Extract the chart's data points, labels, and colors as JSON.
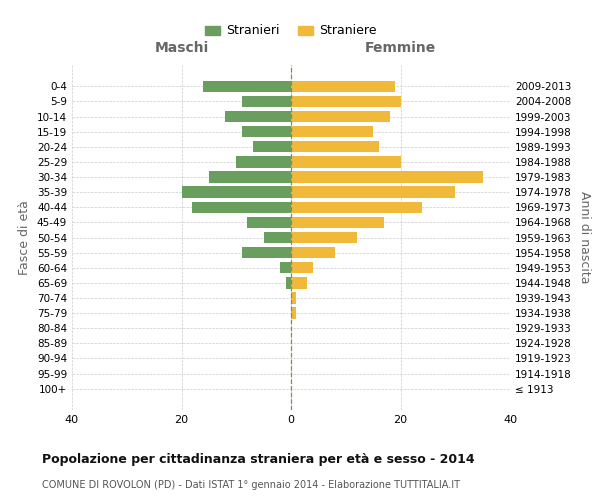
{
  "age_groups": [
    "100+",
    "95-99",
    "90-94",
    "85-89",
    "80-84",
    "75-79",
    "70-74",
    "65-69",
    "60-64",
    "55-59",
    "50-54",
    "45-49",
    "40-44",
    "35-39",
    "30-34",
    "25-29",
    "20-24",
    "15-19",
    "10-14",
    "5-9",
    "0-4"
  ],
  "birth_years": [
    "≤ 1913",
    "1914-1918",
    "1919-1923",
    "1924-1928",
    "1929-1933",
    "1934-1938",
    "1939-1943",
    "1944-1948",
    "1949-1953",
    "1954-1958",
    "1959-1963",
    "1964-1968",
    "1969-1973",
    "1974-1978",
    "1979-1983",
    "1984-1988",
    "1989-1993",
    "1994-1998",
    "1999-2003",
    "2004-2008",
    "2009-2013"
  ],
  "maschi": [
    0,
    0,
    0,
    0,
    0,
    0,
    0,
    1,
    2,
    9,
    5,
    8,
    18,
    20,
    15,
    10,
    7,
    9,
    12,
    9,
    16
  ],
  "femmine": [
    0,
    0,
    0,
    0,
    0,
    1,
    1,
    3,
    4,
    8,
    12,
    17,
    24,
    30,
    35,
    20,
    16,
    15,
    18,
    20,
    19
  ],
  "color_maschi": "#6a9e5e",
  "color_femmine": "#f0b93a",
  "title": "Popolazione per cittadinanza straniera per età e sesso - 2014",
  "subtitle": "COMUNE DI ROVOLON (PD) - Dati ISTAT 1° gennaio 2014 - Elaborazione TUTTITALIA.IT",
  "xlabel_left": "Maschi",
  "xlabel_right": "Femmine",
  "ylabel_left": "Fasce di età",
  "ylabel_right": "Anni di nascita",
  "legend_maschi": "Stranieri",
  "legend_femmine": "Straniere",
  "xlim": 40,
  "background_color": "#ffffff",
  "grid_color": "#cccccc"
}
